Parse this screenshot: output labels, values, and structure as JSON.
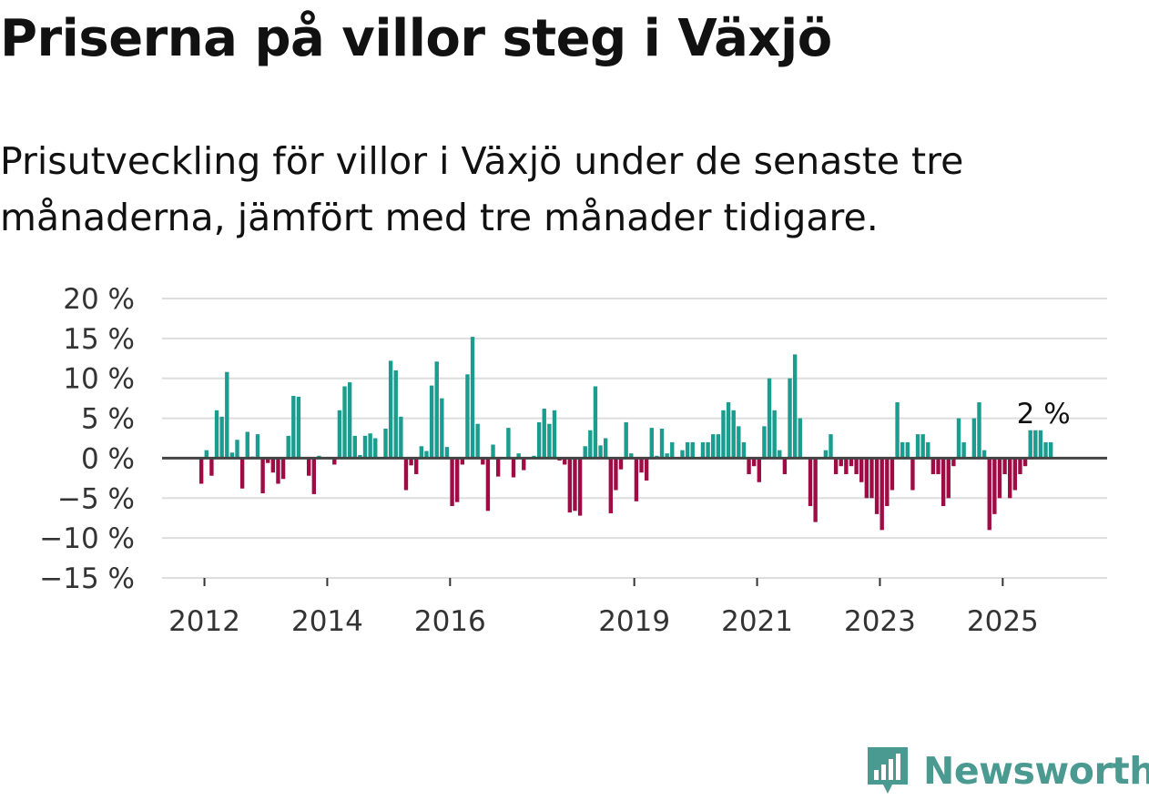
{
  "title": "Priserna på villor steg i Växjö",
  "subtitle": "Prisutveckling för villor i Växjö under de senaste tre månaderna, jämfört med tre månader tidigare.",
  "colors": {
    "positive": "#1a9c8f",
    "negative": "#9e0b45",
    "grid": "#dddddd",
    "zero_line": "#444444",
    "brand": "#4a9a92"
  },
  "brand": {
    "name": "Newsworthy",
    "icon": "bar-chart-speech-bubble-icon"
  },
  "chart_data": {
    "type": "bar",
    "title": "Priserna på villor steg i Växjö",
    "xlabel": "",
    "ylabel": "",
    "ylim": [
      -15,
      20
    ],
    "y_ticks": [
      20,
      15,
      10,
      5,
      0,
      -5,
      -10,
      -15
    ],
    "y_tick_labels": [
      "20 %",
      "15 %",
      "10 %",
      "5 %",
      "0 %",
      "−5 %",
      "−10 %",
      "−15 %"
    ],
    "x_range": [
      2011.31,
      2026.7
    ],
    "x_ticks": [
      2012,
      2014,
      2016,
      2019,
      2021,
      2023,
      2025
    ],
    "x_tick_labels": [
      "2012",
      "2014",
      "2016",
      "2019",
      "2021",
      "2023",
      "2025"
    ],
    "annotation": {
      "label": "2 %",
      "x": 2025.25
    },
    "series": [
      {
        "name": "Prisutveckling",
        "start": 2011.95,
        "step": 0.0833333,
        "unit": "%",
        "values": [
          -3.2,
          1.0,
          -2.2,
          6.0,
          5.2,
          10.8,
          0.7,
          2.3,
          -3.8,
          3.3,
          0.2,
          3.0,
          -4.4,
          -0.6,
          -1.8,
          -3.2,
          -2.6,
          2.8,
          7.8,
          7.7,
          0.0,
          -2.2,
          -4.5,
          0.3,
          0.0,
          0.0,
          -0.8,
          6.0,
          9.0,
          9.5,
          2.8,
          0.4,
          2.8,
          3.1,
          2.5,
          0.0,
          3.7,
          12.2,
          11.0,
          5.2,
          -4.0,
          -0.9,
          -2.0,
          1.5,
          0.9,
          9.1,
          12.1,
          7.5,
          1.4,
          -6.0,
          -5.5,
          -0.8,
          10.5,
          15.2,
          4.3,
          -0.8,
          -6.6,
          1.7,
          -2.3,
          0.0,
          3.8,
          -2.4,
          0.6,
          -1.5,
          0.0,
          0.3,
          4.5,
          6.2,
          4.3,
          6.0,
          -0.3,
          -0.8,
          -6.8,
          -6.6,
          -7.2,
          1.5,
          3.5,
          9.0,
          1.6,
          2.5,
          -6.9,
          -4.0,
          -1.4,
          4.5,
          0.6,
          -5.4,
          -1.8,
          -2.8,
          3.8,
          0.3,
          3.7,
          0.6,
          2.0,
          0.0,
          1.0,
          2.0,
          2.0,
          0.0,
          2.0,
          2.0,
          3.0,
          3.0,
          6.0,
          7.0,
          6.0,
          4.0,
          2.0,
          -2.0,
          -1.0,
          -3.0,
          4.0,
          10.0,
          6.0,
          1.0,
          -2.0,
          10.0,
          13.0,
          5.0,
          0.0,
          -6.0,
          -8.0,
          0.0,
          1.0,
          3.0,
          -2.0,
          -1.0,
          -2.0,
          -1.0,
          -2.0,
          -3.0,
          -5.0,
          -5.0,
          -7.0,
          -9.0,
          -6.0,
          -4.0,
          7.0,
          2.0,
          2.0,
          -4.0,
          3.0,
          3.0,
          2.0,
          -2.0,
          -2.0,
          -6.0,
          -5.0,
          -1.0,
          5.0,
          2.0,
          0.0,
          5.0,
          7.0,
          1.0,
          -9.0,
          -7.0,
          -5.0,
          -2.0,
          -5.0,
          -4.0,
          -2.0,
          -1.0,
          3.5,
          3.5,
          3.5,
          2.0,
          2.0
        ]
      }
    ]
  }
}
